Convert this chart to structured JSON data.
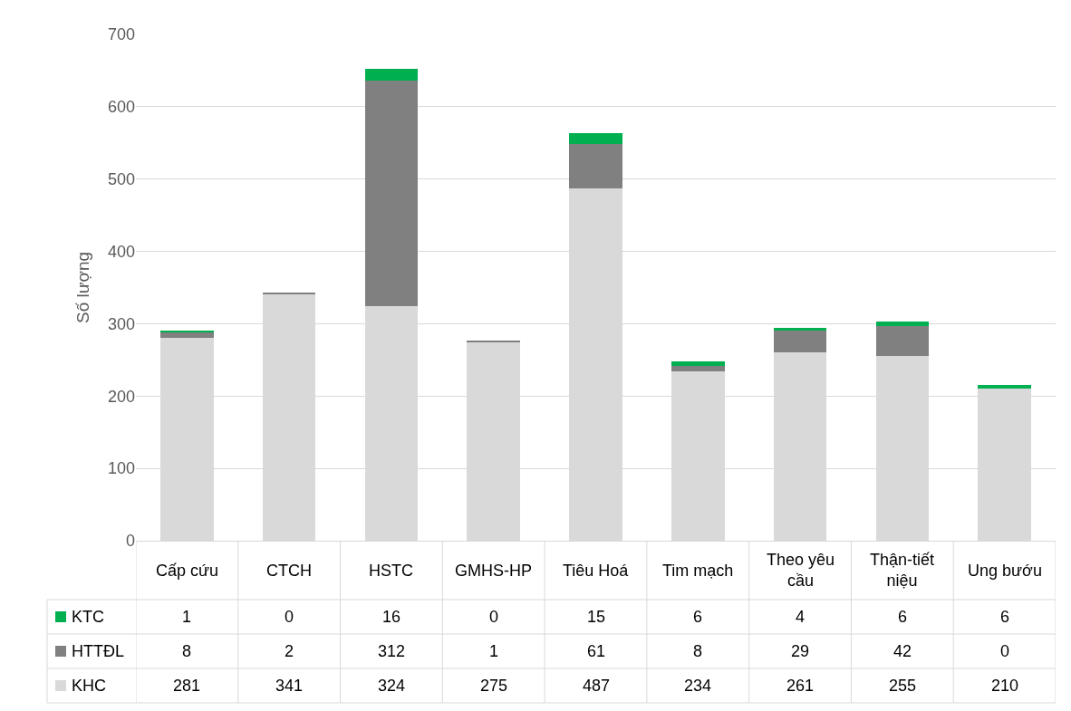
{
  "chart_data": {
    "type": "bar",
    "stacked": true,
    "ylabel": "Số lượng",
    "categories": [
      "Cấp cứu",
      "CTCH",
      "HSTC",
      "GMHS-HP",
      "Tiêu Hoá",
      "Tim mạch",
      "Theo yêu cầu",
      "Thận-tiết niệu",
      "Ung bướu"
    ],
    "series": [
      {
        "name": "KHC",
        "color": "#d9d9d9",
        "values": [
          281,
          341,
          324,
          275,
          487,
          234,
          261,
          255,
          210
        ]
      },
      {
        "name": "HTTĐL",
        "color": "#808080",
        "values": [
          8,
          2,
          312,
          1,
          61,
          8,
          29,
          42,
          0
        ]
      },
      {
        "name": "KTC",
        "color": "#00b050",
        "values": [
          1,
          0,
          16,
          0,
          15,
          6,
          4,
          6,
          6
        ]
      }
    ],
    "ylim": [
      0,
      700
    ],
    "yticks": [
      0,
      100,
      200,
      300,
      400,
      500,
      600,
      700
    ],
    "grid": "y",
    "data_labels": true,
    "legend": "bottom left"
  }
}
